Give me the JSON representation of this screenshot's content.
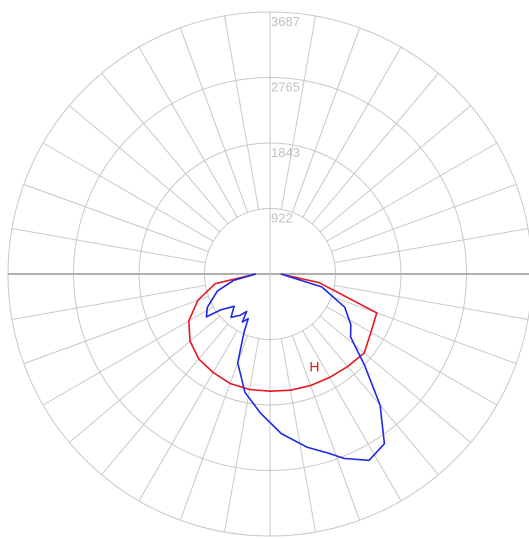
{
  "chart_data": {
    "type": "polar",
    "title": "",
    "radial_ticks": [
      "922",
      "1843",
      "2765",
      "3687"
    ],
    "radial_tick_values": [
      922,
      1843,
      2765,
      3687
    ],
    "r_max": 3687,
    "angular_grid_step_deg": 10,
    "grid": true,
    "series": [
      {
        "name": "H",
        "color": "#e8141e",
        "angles_deg": [
          -90,
          -80,
          -70,
          -60,
          -50,
          -40,
          -30,
          -20,
          -10,
          0,
          10,
          20,
          30,
          40,
          50,
          60,
          70,
          80,
          90
        ],
        "values": [
          200,
          780,
          1080,
          1320,
          1470,
          1560,
          1600,
          1640,
          1650,
          1650,
          1660,
          1670,
          1680,
          1700,
          1730,
          1640,
          1600,
          700,
          150
        ]
      },
      {
        "name": "",
        "color": "#1e28e6",
        "points_deg_value": [
          [
            -90,
            200
          ],
          [
            -80,
            520
          ],
          [
            -72,
            780
          ],
          [
            -62,
            1000
          ],
          [
            -56,
            1080
          ],
          [
            -54,
            860
          ],
          [
            -48,
            680
          ],
          [
            -42,
            820
          ],
          [
            -36,
            720
          ],
          [
            -32,
            620
          ],
          [
            -30,
            780
          ],
          [
            -26,
            700
          ],
          [
            -24,
            900
          ],
          [
            -20,
            1330
          ],
          [
            -12,
            1700
          ],
          [
            -4,
            1960
          ],
          [
            4,
            2250
          ],
          [
            12,
            2490
          ],
          [
            18,
            2650
          ],
          [
            22,
            2800
          ],
          [
            28,
            2970
          ],
          [
            34,
            2880
          ],
          [
            40,
            2410
          ],
          [
            46,
            1850
          ],
          [
            52,
            1440
          ],
          [
            58,
            1340
          ],
          [
            66,
            1150
          ],
          [
            76,
            750
          ],
          [
            90,
            150
          ]
        ]
      }
    ]
  }
}
